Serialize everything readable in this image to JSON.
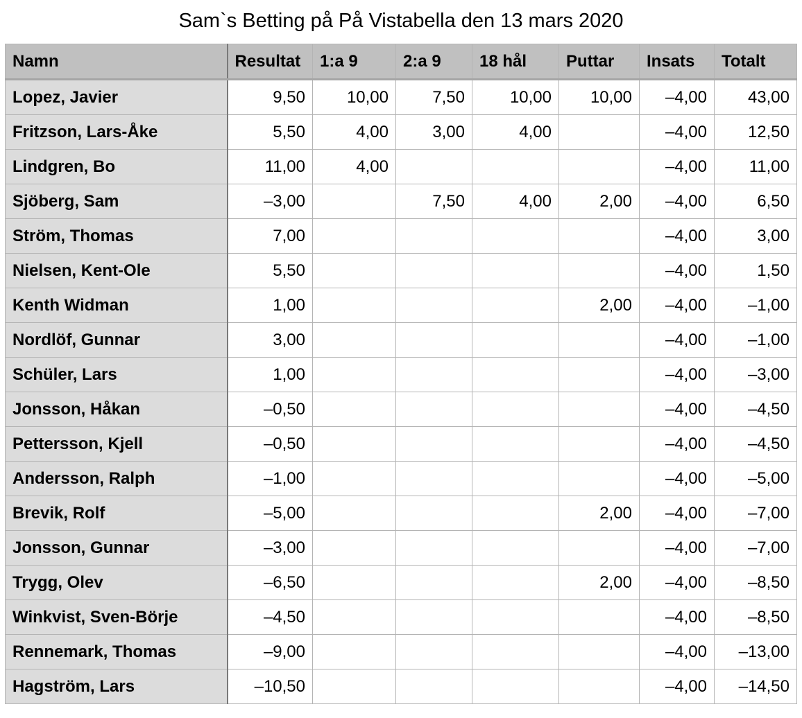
{
  "title": "Sam`s Betting på På Vistabella den 13 mars 2020",
  "columns": [
    "Namn",
    "Resultat",
    "1:a 9",
    "2:a 9",
    "18 hål",
    "Puttar",
    "Insats",
    "Totalt"
  ],
  "rows": [
    [
      "Lopez, Javier",
      "9,50",
      "10,00",
      "7,50",
      "10,00",
      "10,00",
      "–4,00",
      "43,00"
    ],
    [
      "Fritzson, Lars-Åke",
      "5,50",
      "4,00",
      "3,00",
      "4,00",
      "",
      "–4,00",
      "12,50"
    ],
    [
      "Lindgren, Bo",
      "11,00",
      "4,00",
      "",
      "",
      "",
      "–4,00",
      "11,00"
    ],
    [
      "Sjöberg, Sam",
      "–3,00",
      "",
      "7,50",
      "4,00",
      "2,00",
      "–4,00",
      "6,50"
    ],
    [
      "Ström, Thomas",
      "7,00",
      "",
      "",
      "",
      "",
      "–4,00",
      "3,00"
    ],
    [
      "Nielsen, Kent-Ole",
      "5,50",
      "",
      "",
      "",
      "",
      "–4,00",
      "1,50"
    ],
    [
      "Kenth Widman",
      "1,00",
      "",
      "",
      "",
      "2,00",
      "–4,00",
      "–1,00"
    ],
    [
      "Nordlöf, Gunnar",
      "3,00",
      "",
      "",
      "",
      "",
      "–4,00",
      "–1,00"
    ],
    [
      "Schüler, Lars",
      "1,00",
      "",
      "",
      "",
      "",
      "–4,00",
      "–3,00"
    ],
    [
      "Jonsson, Håkan",
      "–0,50",
      "",
      "",
      "",
      "",
      "–4,00",
      "–4,50"
    ],
    [
      "Pettersson, Kjell",
      "–0,50",
      "",
      "",
      "",
      "",
      "–4,00",
      "–4,50"
    ],
    [
      "Andersson, Ralph",
      "–1,00",
      "",
      "",
      "",
      "",
      "–4,00",
      "–5,00"
    ],
    [
      "Brevik, Rolf",
      "–5,00",
      "",
      "",
      "",
      "2,00",
      "–4,00",
      "–7,00"
    ],
    [
      "Jonsson, Gunnar",
      "–3,00",
      "",
      "",
      "",
      "",
      "–4,00",
      "–7,00"
    ],
    [
      "Trygg, Olev",
      "–6,50",
      "",
      "",
      "",
      "2,00",
      "–4,00",
      "–8,50"
    ],
    [
      "Winkvist, Sven-Börje",
      "–4,50",
      "",
      "",
      "",
      "",
      "–4,00",
      "–8,50"
    ],
    [
      "Rennemark, Thomas",
      "–9,00",
      "",
      "",
      "",
      "",
      "–4,00",
      "–13,00"
    ],
    [
      "Hagström, Lars",
      "–10,50",
      "",
      "",
      "",
      "",
      "–4,00",
      "–14,50"
    ]
  ]
}
